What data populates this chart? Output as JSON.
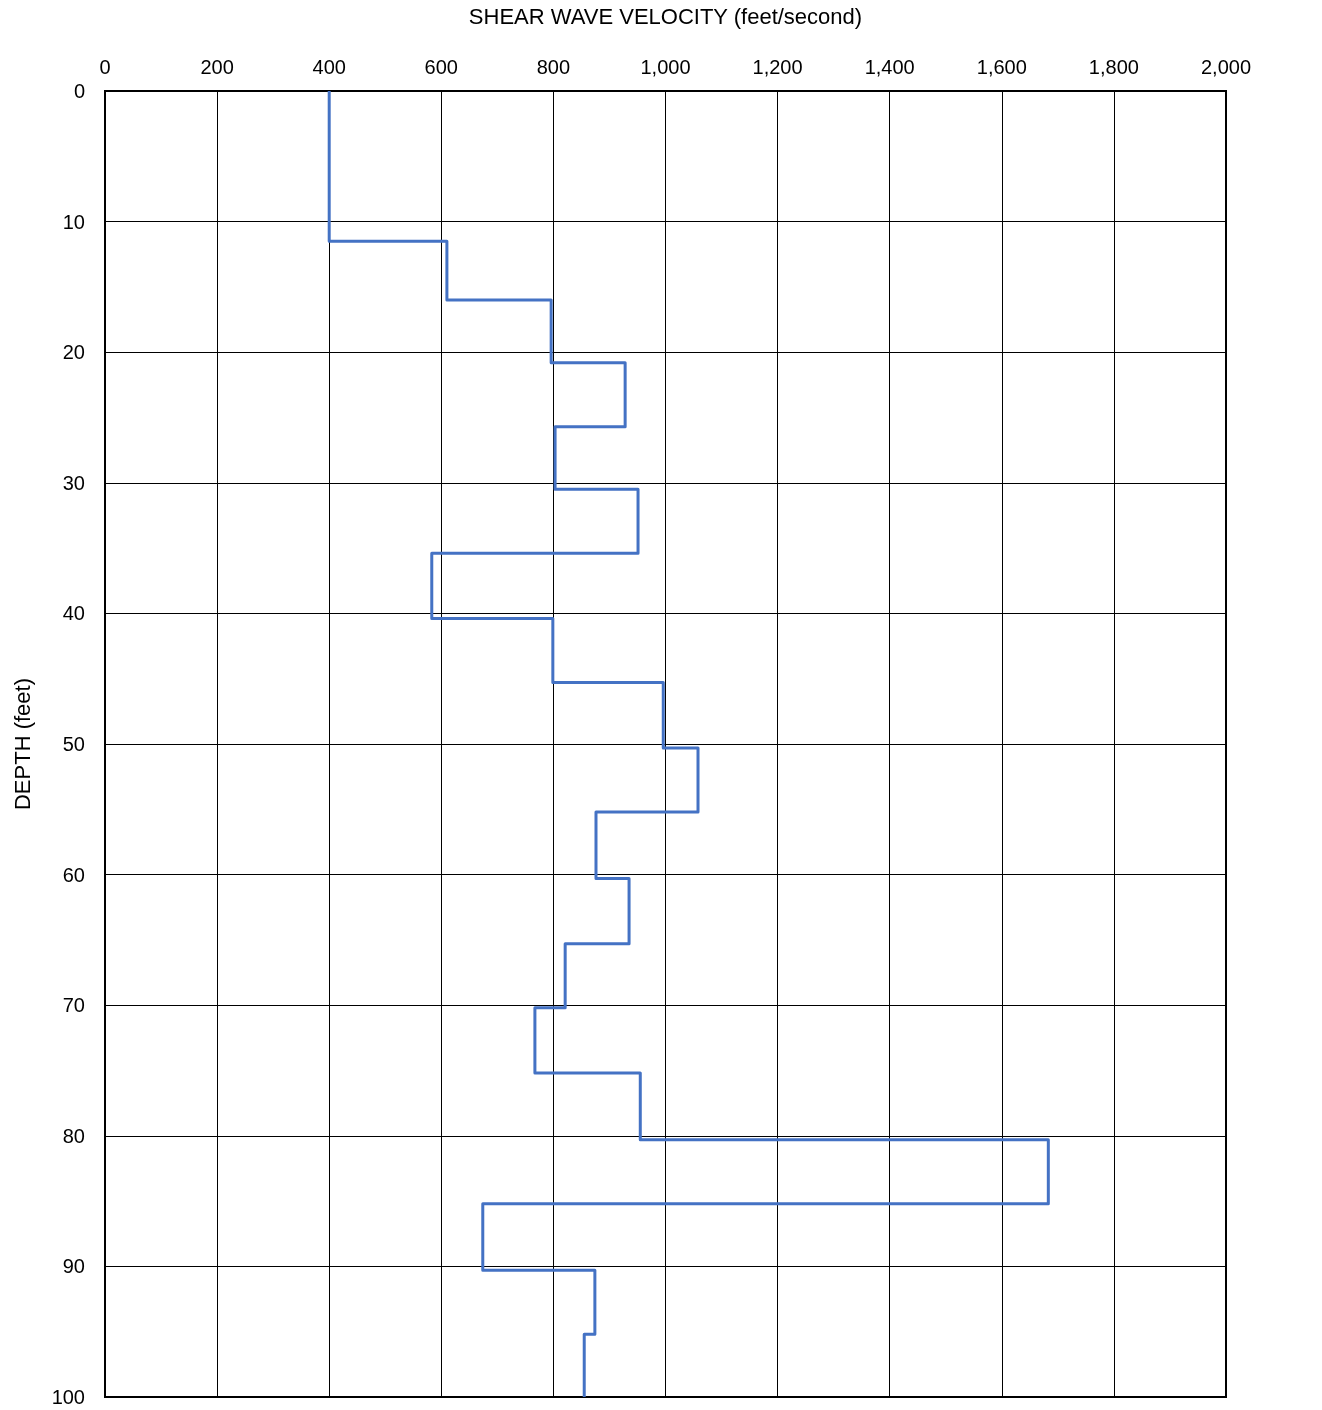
{
  "chart_data": {
    "type": "line",
    "xlabel": "SHEAR WAVE VELOCITY (feet/second)",
    "ylabel": "DEPTH (feet)",
    "x": [
      400,
      400,
      610,
      610,
      796,
      796,
      928,
      928,
      803,
      803,
      951,
      951,
      583,
      583,
      799,
      799,
      996,
      996,
      1058,
      1058,
      876,
      876,
      935,
      935,
      821,
      821,
      767,
      767,
      955,
      955,
      1683,
      1683,
      674,
      674,
      874,
      874,
      855,
      855
    ],
    "series": [
      {
        "color": "#4472c4",
        "values": [
          0,
          11.5,
          11.5,
          16,
          16,
          20.8,
          20.8,
          25.7,
          25.7,
          30.5,
          30.5,
          35.4,
          35.4,
          40.4,
          40.4,
          45.3,
          45.3,
          50.3,
          50.3,
          55.2,
          55.2,
          60.3,
          60.3,
          65.3,
          65.3,
          70.2,
          70.2,
          75.2,
          75.2,
          80.3,
          80.3,
          85.2,
          85.2,
          90.3,
          90.3,
          95.2,
          95.2,
          100
        ]
      }
    ],
    "xlim": [
      0,
      2000
    ],
    "xticks": [
      0,
      200,
      400,
      600,
      800,
      {
        "value": 1000,
        "label": "1,000"
      },
      {
        "value": 1200,
        "label": "1,200"
      },
      {
        "value": 1400,
        "label": "1,400"
      },
      {
        "value": 1600,
        "label": "1,600"
      },
      {
        "value": 1800,
        "label": "1,800"
      },
      {
        "value": 2000,
        "label": "2,000"
      }
    ],
    "ylim": [
      100,
      0
    ],
    "yticks": [
      0,
      10,
      20,
      30,
      40,
      50,
      60,
      70,
      80,
      90,
      100
    ],
    "grid": true,
    "marker": "none",
    "line_style": "solid"
  }
}
